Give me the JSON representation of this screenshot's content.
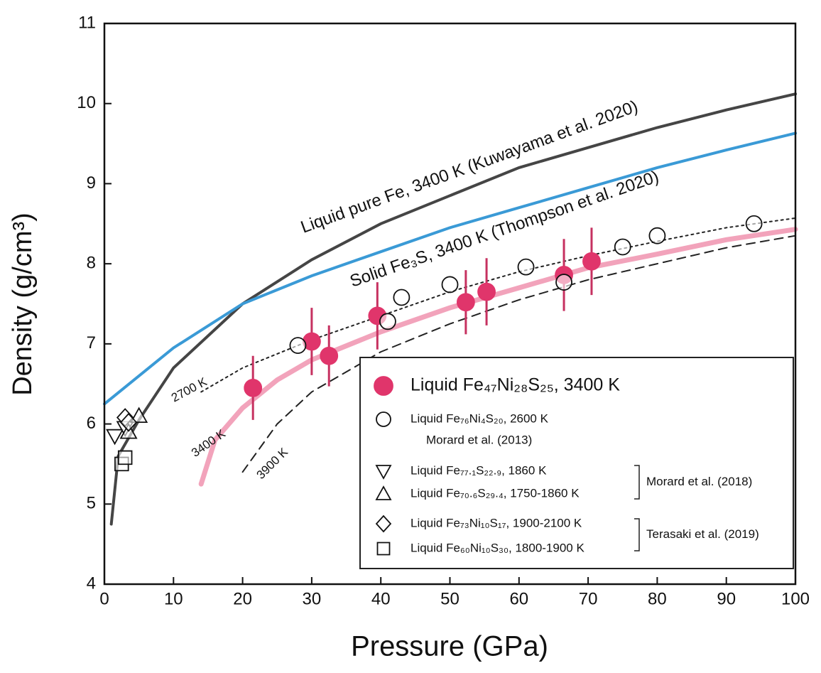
{
  "chart_data": {
    "type": "scatter",
    "x_label": "Pressure (GPa)",
    "y_label": "Density (g/cm³)",
    "xlim": [
      0,
      100
    ],
    "ylim": [
      4,
      11
    ],
    "xticks": [
      0,
      10,
      20,
      30,
      40,
      50,
      60,
      70,
      80,
      90,
      100
    ],
    "yticks": [
      4,
      5,
      6,
      7,
      8,
      9,
      10,
      11
    ],
    "curves": [
      {
        "label": "Liquid pure Fe, 3400 K  (Kuwayama et al. 2020)",
        "color": "#454545",
        "style": "solid",
        "x": [
          1,
          2,
          5,
          10,
          20,
          30,
          40,
          50,
          60,
          70,
          80,
          90,
          100
        ],
        "values": [
          4.75,
          5.6,
          6.05,
          6.7,
          7.5,
          8.05,
          8.5,
          8.85,
          9.2,
          9.45,
          9.7,
          9.92,
          10.12
        ]
      },
      {
        "label": "Solid Fe₃S, 3400 K  (Thompson et al. 2020)",
        "color": "#3a9ad6",
        "style": "solid",
        "x": [
          0,
          10,
          20,
          30,
          40,
          50,
          60,
          70,
          80,
          90,
          100
        ],
        "values": [
          6.25,
          6.95,
          7.5,
          7.85,
          8.15,
          8.45,
          8.7,
          8.95,
          9.2,
          9.42,
          9.63
        ]
      },
      {
        "label": "2700 K",
        "color": "#222222",
        "style": "dotted",
        "x": [
          14,
          20,
          30,
          40,
          50,
          60,
          70,
          80,
          90,
          100
        ],
        "values": [
          6.4,
          6.7,
          7.05,
          7.35,
          7.65,
          7.9,
          8.1,
          8.28,
          8.45,
          8.57
        ]
      },
      {
        "label": "3400 K",
        "color": "#f2a3bb",
        "style": "thick",
        "x": [
          14,
          16,
          20,
          25,
          30,
          40,
          50,
          60,
          70,
          80,
          90,
          100
        ],
        "values": [
          5.25,
          5.8,
          6.2,
          6.55,
          6.8,
          7.15,
          7.45,
          7.7,
          7.95,
          8.12,
          8.3,
          8.43
        ]
      },
      {
        "label": "3900 K",
        "color": "#222222",
        "style": "dashed",
        "x": [
          20,
          25,
          30,
          40,
          50,
          60,
          70,
          80,
          90,
          100
        ],
        "values": [
          5.4,
          6.0,
          6.4,
          6.9,
          7.25,
          7.55,
          7.8,
          8.0,
          8.2,
          8.35
        ]
      }
    ],
    "series": [
      {
        "name": "Liquid Fe₄₇Ni₂₈S₂₅, 3400 K",
        "marker": "circle-filled",
        "color": "#e0356b",
        "x": [
          21.5,
          30,
          32.5,
          39.5,
          52.3,
          55.3,
          66.5,
          70.5
        ],
        "values": [
          6.45,
          7.03,
          6.85,
          7.35,
          7.52,
          7.65,
          7.86,
          8.03
        ],
        "errors": [
          0.4,
          0.42,
          0.38,
          0.42,
          0.4,
          0.42,
          0.45,
          0.42
        ]
      },
      {
        "name": "Liquid Fe₇₆Ni₄S₂₀, 2600 K",
        "reference": "Morard et al. (2013)",
        "marker": "circle",
        "color": "#111111",
        "x": [
          28,
          41,
          43,
          50,
          61,
          66.5,
          75,
          80,
          94
        ],
        "values": [
          6.98,
          7.28,
          7.58,
          7.74,
          7.96,
          7.77,
          8.21,
          8.35,
          8.5
        ]
      },
      {
        "name": "Liquid Fe₇₇.₁S₂₂.₉, 1860 K",
        "marker": "triangle-down",
        "color": "#111111",
        "x": [
          1.5,
          3
        ],
        "values": [
          5.85,
          5.95
        ]
      },
      {
        "name": "Liquid Fe₇₀.₆S₂₉.₄, 1750-1860 K",
        "marker": "triangle-up",
        "color": "#111111",
        "x": [
          3.5,
          5
        ],
        "values": [
          5.9,
          6.1
        ]
      },
      {
        "name": "Liquid Fe₇₃Ni₁₀S₁₇, 1900-2100 K",
        "marker": "diamond",
        "color": "#111111",
        "x": [
          3,
          3.5
        ],
        "values": [
          6.08,
          6.02
        ]
      },
      {
        "name": "Liquid Fe₆₀Ni₁₀S₃₀, 1800-1900 K",
        "marker": "square",
        "color": "#111111",
        "x": [
          2.5,
          3
        ],
        "values": [
          5.5,
          5.58
        ]
      }
    ],
    "legend_brackets": [
      "Morard et al. (2018)",
      "Terasaki et al. (2019)"
    ]
  }
}
